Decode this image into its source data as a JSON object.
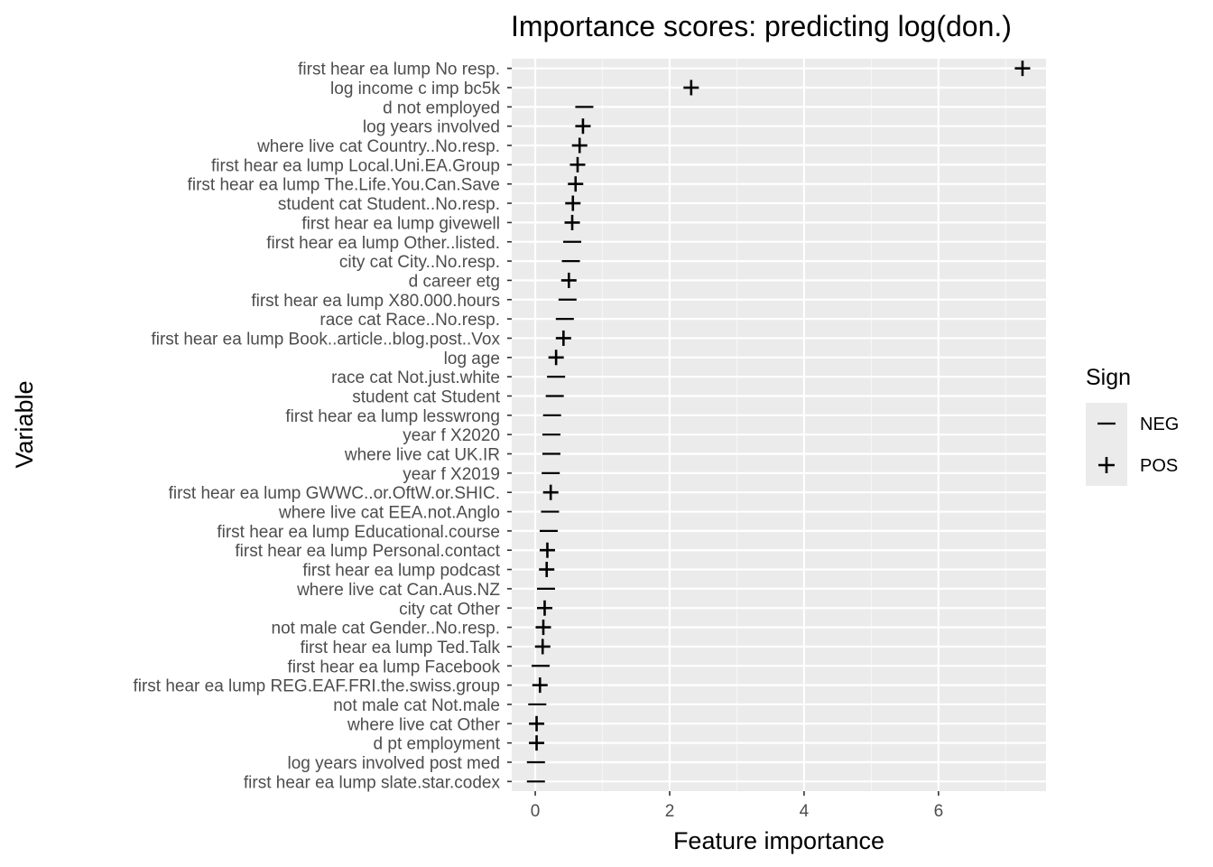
{
  "chart_data": {
    "type": "scatter",
    "title": "Importance scores: predicting log(don.)",
    "xlabel": "Feature importance",
    "ylabel": "Variable",
    "xlim": [
      -0.35,
      7.6
    ],
    "xticks": [
      0,
      2,
      4,
      6
    ],
    "grid": true,
    "legend": {
      "title": "Sign",
      "position": "right",
      "entries": [
        {
          "label": "NEG",
          "symbol": "—"
        },
        {
          "label": "POS",
          "symbol": "+"
        }
      ]
    },
    "points": [
      {
        "label": "first hear ea lump No resp.",
        "value": 7.25,
        "sign": "POS"
      },
      {
        "label": "log income c imp bc5k",
        "value": 2.32,
        "sign": "POS"
      },
      {
        "label": "d not employed",
        "value": 0.73,
        "sign": "NEG"
      },
      {
        "label": "log years involved",
        "value": 0.71,
        "sign": "POS"
      },
      {
        "label": "where live cat Country..No.resp.",
        "value": 0.66,
        "sign": "POS"
      },
      {
        "label": "first hear ea lump Local.Uni.EA.Group",
        "value": 0.63,
        "sign": "POS"
      },
      {
        "label": "first hear ea lump The.Life.You.Can.Save",
        "value": 0.6,
        "sign": "POS"
      },
      {
        "label": "student cat Student..No.resp.",
        "value": 0.56,
        "sign": "POS"
      },
      {
        "label": "first hear ea lump givewell",
        "value": 0.55,
        "sign": "POS"
      },
      {
        "label": "first hear ea lump Other..listed.",
        "value": 0.55,
        "sign": "NEG"
      },
      {
        "label": "city cat City..No.resp.",
        "value": 0.53,
        "sign": "NEG"
      },
      {
        "label": "d career etg",
        "value": 0.5,
        "sign": "POS"
      },
      {
        "label": "first hear ea lump X80.000.hours",
        "value": 0.48,
        "sign": "NEG"
      },
      {
        "label": "race cat Race..No.resp.",
        "value": 0.44,
        "sign": "NEG"
      },
      {
        "label": "first hear ea lump Book..article..blog.post..Vox",
        "value": 0.42,
        "sign": "POS"
      },
      {
        "label": "log age",
        "value": 0.31,
        "sign": "POS"
      },
      {
        "label": "race cat Not.just.white",
        "value": 0.31,
        "sign": "NEG"
      },
      {
        "label": "student cat Student",
        "value": 0.29,
        "sign": "NEG"
      },
      {
        "label": "first hear ea lump lesswrong",
        "value": 0.25,
        "sign": "NEG"
      },
      {
        "label": "year f X2020",
        "value": 0.24,
        "sign": "NEG"
      },
      {
        "label": "where live cat UK.IR",
        "value": 0.24,
        "sign": "NEG"
      },
      {
        "label": "year f X2019",
        "value": 0.23,
        "sign": "NEG"
      },
      {
        "label": "first hear ea lump GWWC..or.OftW.or.SHIC.",
        "value": 0.23,
        "sign": "POS"
      },
      {
        "label": "where live cat EEA.not.Anglo",
        "value": 0.22,
        "sign": "NEG"
      },
      {
        "label": "first hear ea lump Educational.course",
        "value": 0.2,
        "sign": "NEG"
      },
      {
        "label": "first hear ea lump Personal.contact",
        "value": 0.18,
        "sign": "POS"
      },
      {
        "label": "first hear ea lump podcast",
        "value": 0.17,
        "sign": "POS"
      },
      {
        "label": "where live cat Can.Aus.NZ",
        "value": 0.16,
        "sign": "NEG"
      },
      {
        "label": "city cat Other",
        "value": 0.14,
        "sign": "POS"
      },
      {
        "label": "not male cat Gender..No.resp.",
        "value": 0.12,
        "sign": "POS"
      },
      {
        "label": "first hear ea lump Ted.Talk",
        "value": 0.11,
        "sign": "POS"
      },
      {
        "label": "first hear ea lump Facebook",
        "value": 0.08,
        "sign": "NEG"
      },
      {
        "label": "first hear ea lump REG.EAF.FRI.the.swiss.group",
        "value": 0.07,
        "sign": "POS"
      },
      {
        "label": "not male cat Not.male",
        "value": 0.03,
        "sign": "NEG"
      },
      {
        "label": "where live cat Other",
        "value": 0.02,
        "sign": "POS"
      },
      {
        "label": "d pt employment",
        "value": 0.02,
        "sign": "POS"
      },
      {
        "label": "log years involved post med",
        "value": 0.01,
        "sign": "NEG"
      },
      {
        "label": "first hear ea lump slate.star.codex",
        "value": 0.01,
        "sign": "NEG"
      }
    ]
  }
}
